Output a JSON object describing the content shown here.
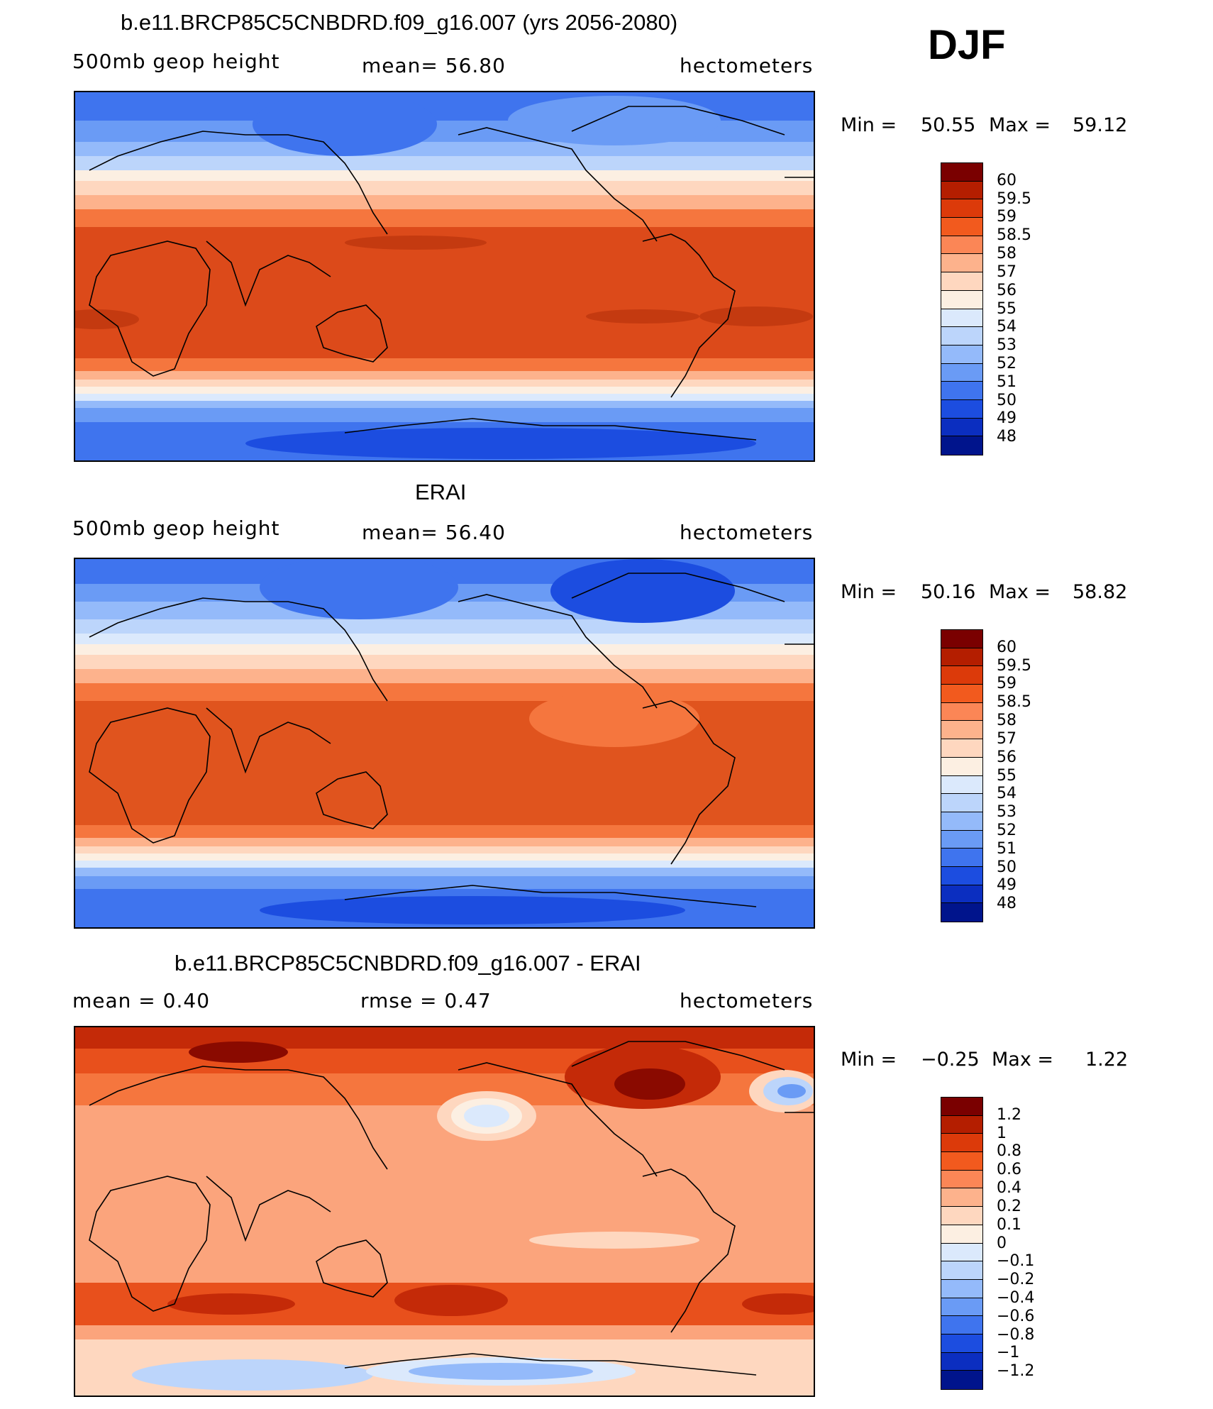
{
  "season": "DJF",
  "panels": [
    {
      "title": "b.e11.BRCP85C5CNBDRD.f09_g16.007 (yrs 2056-2080)",
      "left": "500mb  geop  height",
      "center": "mean=   56.80",
      "right": "hectometers",
      "min_label": "Min  =",
      "min_value": "50.55",
      "max_label": "Max  =",
      "max_value": "59.12",
      "colorbar": {
        "colors": [
          "#7a0000",
          "#b41e00",
          "#dc3a0a",
          "#f25a1e",
          "#fb8656",
          "#fdb28c",
          "#fed7bf",
          "#fcefe2",
          "#dbe9fc",
          "#bcd5fb",
          "#94bafa",
          "#6a9bf5",
          "#3f74ee",
          "#1c4de0",
          "#0b2ec0",
          "#00148c"
        ],
        "labels": [
          "60",
          "59.5",
          "59",
          "58.5",
          "58",
          "57",
          "56",
          "55",
          "54",
          "53",
          "52",
          "51",
          "50",
          "49",
          "48"
        ]
      }
    },
    {
      "title": "ERAI",
      "left": "500mb  geop  height",
      "center": "mean=   56.40",
      "right": "hectometers",
      "min_label": "Min  =",
      "min_value": "50.16",
      "max_label": "Max  =",
      "max_value": "58.82",
      "colorbar": {
        "colors": [
          "#7a0000",
          "#b41e00",
          "#dc3a0a",
          "#f25a1e",
          "#fb8656",
          "#fdb28c",
          "#fed7bf",
          "#fcefe2",
          "#dbe9fc",
          "#bcd5fb",
          "#94bafa",
          "#6a9bf5",
          "#3f74ee",
          "#1c4de0",
          "#0b2ec0",
          "#00148c"
        ],
        "labels": [
          "60",
          "59.5",
          "59",
          "58.5",
          "58",
          "57",
          "56",
          "55",
          "54",
          "53",
          "52",
          "51",
          "50",
          "49",
          "48"
        ]
      }
    },
    {
      "title": "b.e11.BRCP85C5CNBDRD.f09_g16.007 - ERAI",
      "left": "mean  =     0.40",
      "center": "rmse  =     0.47",
      "right": "hectometers",
      "min_label": "Min  =",
      "min_value": "−0.25",
      "max_label": "Max  =",
      "max_value": "1.22",
      "colorbar": {
        "colors": [
          "#7a0000",
          "#b41e00",
          "#dc3a0a",
          "#f25a1e",
          "#fb8656",
          "#fdb28c",
          "#fed7bf",
          "#fcefe2",
          "#dbe9fc",
          "#bcd5fb",
          "#94bafa",
          "#6a9bf5",
          "#3f74ee",
          "#1c4de0",
          "#0b2ec0",
          "#00148c"
        ],
        "labels": [
          "1.2",
          "1",
          "0.8",
          "0.6",
          "0.4",
          "0.2",
          "0.1",
          "0",
          "−0.1",
          "−0.2",
          "−0.4",
          "−0.6",
          "−0.8",
          "−1",
          "−1.2"
        ]
      }
    }
  ]
}
